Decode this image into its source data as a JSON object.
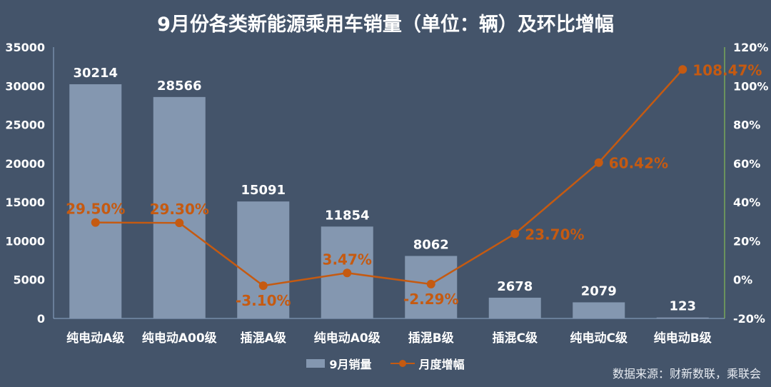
{
  "chart_data": {
    "type": "bar",
    "title": "9月份各类新能源乘用车销量（单位：辆）及环比增幅",
    "categories": [
      "纯电动A级",
      "纯电动A00级",
      "插混A级",
      "纯电动A0级",
      "插混B级",
      "插混C级",
      "纯电动C级",
      "纯电动B级"
    ],
    "series": [
      {
        "name": "9月销量",
        "type": "bar",
        "axis": "left",
        "values": [
          30214,
          28566,
          15091,
          11854,
          8062,
          2678,
          2079,
          123
        ],
        "labels": [
          "30214",
          "28566",
          "15091",
          "11854",
          "8062",
          "2678",
          "2079",
          "123"
        ],
        "color": "#8497b0"
      },
      {
        "name": "月度增幅",
        "type": "line",
        "axis": "right",
        "values": [
          29.5,
          29.3,
          -3.1,
          3.47,
          -2.29,
          23.7,
          60.42,
          108.47
        ],
        "labels": [
          "29.50%",
          "29.30%",
          "-3.10%",
          "3.47%",
          "-2.29%",
          "23.70%",
          "60.42%",
          "108.47%"
        ],
        "color": "#c55a11"
      }
    ],
    "y_left": {
      "range": [
        0,
        35000
      ],
      "ticks": [
        "0",
        "5000",
        "10000",
        "15000",
        "20000",
        "25000",
        "30000",
        "35000"
      ]
    },
    "y_right": {
      "range": [
        -20,
        120
      ],
      "ticks": [
        "-20%",
        "0%",
        "20%",
        "40%",
        "60%",
        "80%",
        "100%",
        "120%"
      ]
    },
    "grid": false,
    "legend_position": "bottom"
  },
  "source_text": "数据来源：财新数联，乘联会"
}
